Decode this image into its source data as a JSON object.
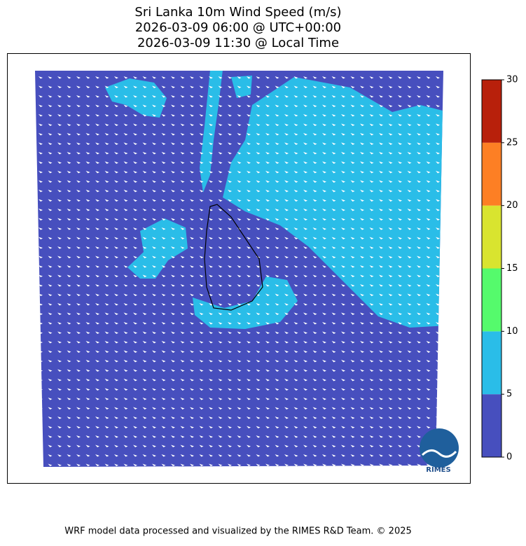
{
  "title": [
    "Sri Lanka 10m Wind Speed (m/s)",
    "2026-03-09 06:00 @ UTC+00:00",
    "2026-03-09 11:30 @ Local Time"
  ],
  "colorbar": {
    "lim": [
      0,
      30
    ],
    "ticks": [
      0,
      5,
      10,
      15,
      20,
      25,
      30
    ],
    "colors": [
      "#474fbe",
      "#2abde8",
      "#55fa6c",
      "#d9e42f",
      "#fd7f24",
      "#b8200b"
    ]
  },
  "logo": "RIMES",
  "footer": "WRF model data processed and visualized by the RIMES R&D Team. © 2025"
}
